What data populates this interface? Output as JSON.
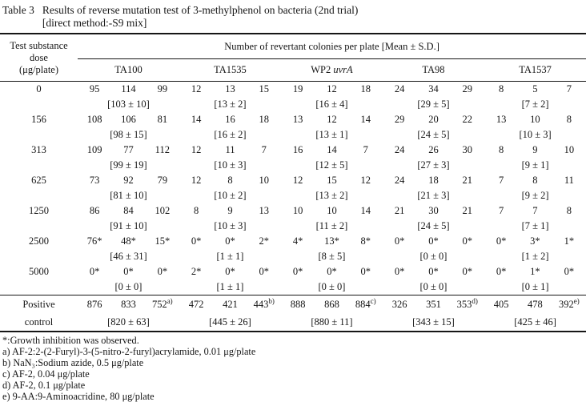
{
  "title": {
    "label": "Table 3",
    "line1": "Results of reverse mutation test of 3-methylphenol on bacteria (2nd trial)",
    "line2": "[direct method:-S9 mix]"
  },
  "table": {
    "dose_header_lines": [
      "Test substance",
      "dose",
      "(μg/plate)"
    ],
    "spanner": "Number of revertant colonies per plate [Mean ± S.D.]",
    "strains": [
      {
        "label": "TA100"
      },
      {
        "label": "TA1535"
      },
      {
        "label": "WP2",
        "italic": "uvrA"
      },
      {
        "label": "TA98"
      },
      {
        "label": "TA1537"
      }
    ],
    "rows": [
      {
        "dose": "0",
        "values": [
          [
            "95",
            "114",
            "99"
          ],
          [
            "12",
            "13",
            "15"
          ],
          [
            "19",
            "12",
            "18"
          ],
          [
            "24",
            "34",
            "29"
          ],
          [
            "8",
            "5",
            "7"
          ]
        ],
        "means": [
          "[103 ± 10]",
          "[13 ± 2]",
          "[16 ± 4]",
          "[29 ± 5]",
          "[7 ± 2]"
        ]
      },
      {
        "dose": "156",
        "values": [
          [
            "108",
            "106",
            "81"
          ],
          [
            "14",
            "16",
            "18"
          ],
          [
            "13",
            "12",
            "14"
          ],
          [
            "29",
            "20",
            "22"
          ],
          [
            "13",
            "10",
            "8"
          ]
        ],
        "means": [
          "[98 ± 15]",
          "[16 ± 2]",
          "[13 ± 1]",
          "[24 ± 5]",
          "[10 ± 3]"
        ]
      },
      {
        "dose": "313",
        "values": [
          [
            "109",
            "77",
            "112"
          ],
          [
            "12",
            "11",
            "7"
          ],
          [
            "16",
            "14",
            "7"
          ],
          [
            "24",
            "26",
            "30"
          ],
          [
            "8",
            "9",
            "10"
          ]
        ],
        "means": [
          "[99 ± 19]",
          "[10 ± 3]",
          "[12 ± 5]",
          "[27 ± 3]",
          "[9 ± 1]"
        ]
      },
      {
        "dose": "625",
        "values": [
          [
            "73",
            "92",
            "79"
          ],
          [
            "12",
            "8",
            "10"
          ],
          [
            "12",
            "15",
            "12"
          ],
          [
            "24",
            "18",
            "21"
          ],
          [
            "7",
            "8",
            "11"
          ]
        ],
        "means": [
          "[81 ± 10]",
          "[10 ± 2]",
          "[13 ± 2]",
          "[21 ± 3]",
          "[9 ± 2]"
        ]
      },
      {
        "dose": "1250",
        "values": [
          [
            "86",
            "84",
            "102"
          ],
          [
            "8",
            "9",
            "13"
          ],
          [
            "10",
            "10",
            "14"
          ],
          [
            "21",
            "30",
            "21"
          ],
          [
            "7",
            "7",
            "8"
          ]
        ],
        "means": [
          "[91 ± 10]",
          "[10 ± 3]",
          "[11 ± 2]",
          "[24 ± 5]",
          "[7 ± 1]"
        ]
      },
      {
        "dose": "2500",
        "values": [
          [
            "76*",
            "48*",
            "15*"
          ],
          [
            "0*",
            "0*",
            "2*"
          ],
          [
            "4*",
            "13*",
            "8*"
          ],
          [
            "0*",
            "0*",
            "0*"
          ],
          [
            "0*",
            "3*",
            "1*"
          ]
        ],
        "means": [
          "[46 ± 31]",
          "[1 ± 1]",
          "[8 ± 5]",
          "[0 ± 0]",
          "[1 ± 2]"
        ]
      },
      {
        "dose": "5000",
        "values": [
          [
            "0*",
            "0*",
            "0*"
          ],
          [
            "2*",
            "0*",
            "0*"
          ],
          [
            "0*",
            "0*",
            "0*"
          ],
          [
            "0*",
            "0*",
            "0*"
          ],
          [
            "0*",
            "1*",
            "0*"
          ]
        ],
        "means": [
          "[0 ± 0]",
          "[1 ± 1]",
          "[0 ± 0]",
          "[0 ± 0]",
          "[0 ± 1]"
        ]
      }
    ],
    "positive_control": {
      "label_line1": "Positive",
      "label_line2": "control",
      "values": [
        [
          "876",
          "833",
          "752^a)"
        ],
        [
          "472",
          "421",
          "443^b)"
        ],
        [
          "888",
          "868",
          "884^c)"
        ],
        [
          "326",
          "351",
          "353^d)"
        ],
        [
          "405",
          "478",
          "392^e)"
        ]
      ],
      "means": [
        "[820 ± 63]",
        "[445 ± 26]",
        "[880 ± 11]",
        "[343 ± 15]",
        "[425 ± 46]"
      ]
    }
  },
  "footnotes": [
    "*:Growth inhibition was observed.",
    "a) AF-2:2-(2-Furyl)-3-(5-nitro-2-furyl)acrylamide, 0.01 μg/plate",
    "b) NaN₃:Sodium azide, 0.5 μg/plate",
    "c) AF-2, 0.04 μg/plate",
    "d) AF-2, 0.1 μg/plate",
    "e) 9-AA:9-Aminoacridine, 80 μg/plate"
  ]
}
